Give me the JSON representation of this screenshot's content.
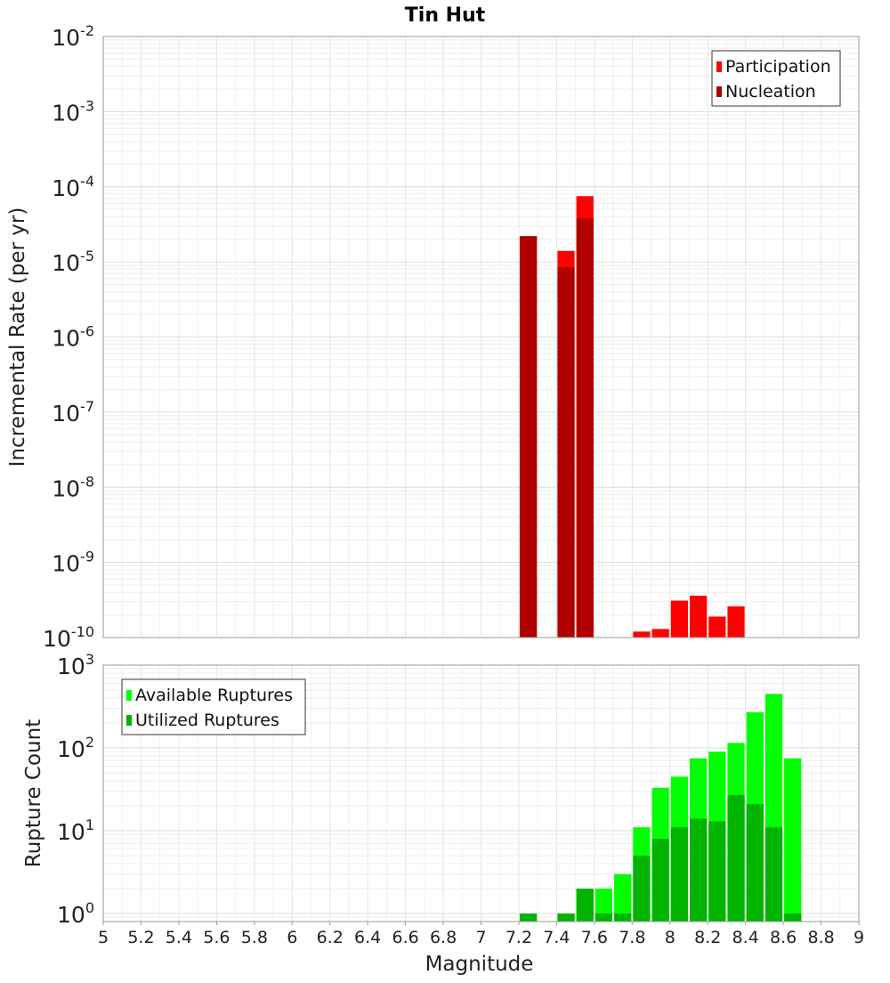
{
  "title": "Tin Hut",
  "chart_data": [
    {
      "type": "bar",
      "scale": "log",
      "ylabel": "Incremental Rate (per yr)",
      "ylim": [
        1e-10,
        0.01
      ],
      "y_ticks": [
        {
          "base": "10",
          "exp": "-2"
        },
        {
          "base": "10",
          "exp": "-3"
        },
        {
          "base": "10",
          "exp": "-4"
        },
        {
          "base": "10",
          "exp": "-5"
        },
        {
          "base": "10",
          "exp": "-6"
        },
        {
          "base": "10",
          "exp": "-7"
        },
        {
          "base": "10",
          "exp": "-8"
        },
        {
          "base": "10",
          "exp": "-9"
        },
        {
          "base": "10",
          "exp": "-10"
        }
      ],
      "legend_position": "top-right",
      "bin_width": 0.1,
      "series": [
        {
          "name": "Participation",
          "color": "#ff0000",
          "x": [
            7.25,
            7.45,
            7.55,
            7.85,
            7.95,
            8.05,
            8.15,
            8.25,
            8.35
          ],
          "values": [
            2.2e-05,
            1.4e-05,
            7.5e-05,
            1.2e-10,
            1.3e-10,
            3.1e-10,
            3.6e-10,
            1.9e-10,
            2.6e-10
          ]
        },
        {
          "name": "Nucleation",
          "color": "#b00000",
          "x": [
            7.25,
            7.45,
            7.55
          ],
          "values": [
            2.2e-05,
            8.5e-06,
            3.8e-05
          ]
        }
      ]
    },
    {
      "type": "bar",
      "scale": "log",
      "ylabel": "Rupture Count",
      "xlabel": "Magnitude",
      "ylim": [
        0.8,
        1000
      ],
      "y_ticks": [
        {
          "base": "10",
          "exp": "3"
        },
        {
          "base": "10",
          "exp": "2"
        },
        {
          "base": "10",
          "exp": "1"
        },
        {
          "base": "10",
          "exp": "0"
        }
      ],
      "xlim": [
        5,
        9
      ],
      "x_ticks": [
        "5",
        "5.2",
        "5.4",
        "5.6",
        "5.8",
        "6",
        "6.2",
        "6.4",
        "6.6",
        "6.8",
        "7",
        "7.2",
        "7.4",
        "7.6",
        "7.8",
        "8",
        "8.2",
        "8.4",
        "8.6",
        "8.8",
        "9"
      ],
      "legend_position": "top-left",
      "bin_width": 0.1,
      "series": [
        {
          "name": "Available Ruptures",
          "color": "#00ff00",
          "x": [
            7.25,
            7.45,
            7.55,
            7.65,
            7.75,
            7.85,
            7.95,
            8.05,
            8.15,
            8.25,
            8.35,
            8.45,
            8.55,
            8.65
          ],
          "values": [
            1,
            1,
            2,
            2,
            3,
            11,
            33,
            45,
            75,
            90,
            115,
            270,
            450,
            75
          ]
        },
        {
          "name": "Utilized Ruptures",
          "color": "#00b400",
          "x": [
            7.25,
            7.45,
            7.55,
            7.65,
            7.75,
            7.85,
            7.95,
            8.05,
            8.15,
            8.25,
            8.35,
            8.45,
            8.55,
            8.65
          ],
          "values": [
            1,
            1,
            2,
            1,
            1,
            5,
            8,
            11,
            14,
            13,
            27,
            21,
            11,
            1
          ]
        }
      ]
    }
  ]
}
